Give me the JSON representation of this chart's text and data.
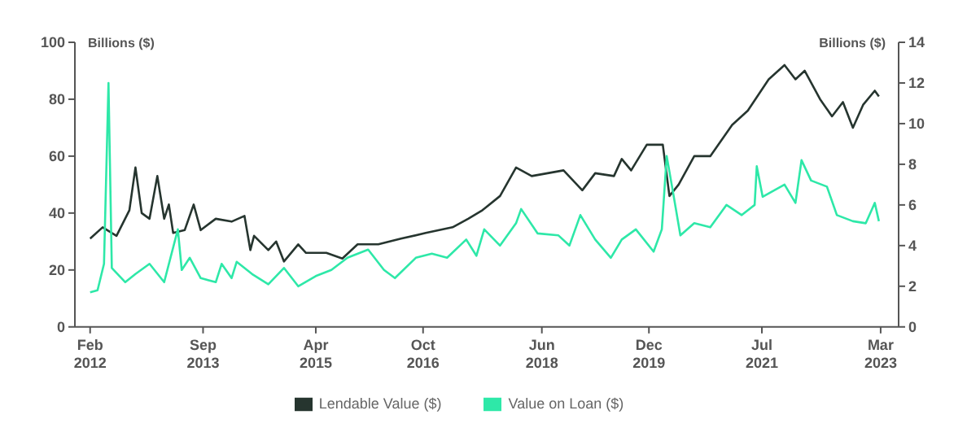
{
  "chart_data": {
    "type": "line",
    "ylabel": "Billions ($)",
    "y2label": "Billions ($)",
    "xlim": [
      "2011-11-15",
      "2023-06-01"
    ],
    "xticks": [
      {
        "value": "2012-02",
        "label": "Feb\n2012"
      },
      {
        "value": "2013-09",
        "label": "Sep\n2013"
      },
      {
        "value": "2015-04",
        "label": "Apr\n2015"
      },
      {
        "value": "2016-10",
        "label": "Oct\n2016"
      },
      {
        "value": "2018-06",
        "label": "Jun\n2018"
      },
      {
        "value": "2019-12",
        "label": "Dec\n2019"
      },
      {
        "value": "2021-07",
        "label": "Jul\n2021"
      },
      {
        "value": "2023-03",
        "label": "Mar\n2023"
      }
    ],
    "ylim": [
      0,
      100
    ],
    "yticks": [
      0,
      20,
      40,
      60,
      80,
      100
    ],
    "y2lim": [
      0,
      14
    ],
    "y2ticks": [
      0,
      2,
      4,
      6,
      8,
      10,
      12,
      14
    ],
    "grid": false,
    "legend": "bottom",
    "marker": "none",
    "line_style": "solid",
    "series": [
      {
        "name": "Lendable Value ($)",
        "color": "#26352f",
        "x": [
          "2012-02-01",
          "2012-04-05",
          "2012-06-15",
          "2012-08-20",
          "2012-09-20",
          "2012-10-22",
          "2012-12-01",
          "2013-01-10",
          "2013-02-14",
          "2013-03-10",
          "2013-04-01",
          "2013-05-30",
          "2013-07-15",
          "2013-08-20",
          "2013-11-05",
          "2014-01-25",
          "2014-04-01",
          "2014-05-01",
          "2014-05-20",
          "2014-08-01",
          "2014-09-10",
          "2014-10-20",
          "2015-01-01",
          "2015-02-10",
          "2015-05-25",
          "2015-08-15",
          "2015-11-01",
          "2016-02-15",
          "2016-06-10",
          "2016-10-15",
          "2017-03-01",
          "2017-05-20",
          "2017-08-01",
          "2017-10-30",
          "2018-01-20",
          "2018-04-10",
          "2018-09-20",
          "2018-12-25",
          "2019-03-01",
          "2019-06-05",
          "2019-07-15",
          "2019-09-01",
          "2019-11-20",
          "2020-02-10",
          "2020-03-15",
          "2020-05-01",
          "2020-07-20",
          "2020-10-10",
          "2021-01-30",
          "2021-04-20",
          "2021-08-05",
          "2021-10-25",
          "2021-12-20",
          "2022-02-05",
          "2022-04-25",
          "2022-06-25",
          "2022-08-20",
          "2022-10-10",
          "2022-12-01",
          "2023-01-30",
          "2023-02-20"
        ],
        "values": [
          31,
          35,
          32,
          41,
          56,
          40,
          38,
          53,
          38,
          43,
          33,
          34,
          43,
          34,
          38,
          37,
          39,
          27,
          32,
          27,
          30,
          23,
          29,
          26,
          26,
          24,
          29,
          29,
          31,
          33,
          35,
          38,
          41,
          46,
          56,
          53,
          55,
          48,
          54,
          53,
          59,
          55,
          64,
          64,
          46,
          50,
          60,
          60,
          71,
          76,
          87,
          92,
          87,
          90,
          80,
          74,
          79,
          70,
          78,
          83,
          81
        ]
      },
      {
        "name": "Value on Loan ($)",
        "color": "#2ee8a8",
        "axis": "y2",
        "x": [
          "2012-02-01",
          "2012-03-10",
          "2012-04-12",
          "2012-05-05",
          "2012-05-22",
          "2012-07-30",
          "2012-09-20",
          "2012-12-01",
          "2013-02-14",
          "2013-04-25",
          "2013-05-15",
          "2013-06-25",
          "2013-08-20",
          "2013-11-05",
          "2013-12-05",
          "2014-01-25",
          "2014-02-20",
          "2014-05-10",
          "2014-08-01",
          "2014-10-20",
          "2015-01-01",
          "2015-04-01",
          "2015-06-20",
          "2015-09-10",
          "2015-12-25",
          "2016-03-15",
          "2016-05-10",
          "2016-08-25",
          "2016-11-15",
          "2017-02-01",
          "2017-05-10",
          "2017-07-01",
          "2017-08-10",
          "2017-10-30",
          "2018-01-20",
          "2018-02-15",
          "2018-05-10",
          "2018-08-25",
          "2018-10-20",
          "2018-12-15",
          "2019-03-01",
          "2019-05-20",
          "2019-07-15",
          "2019-09-25",
          "2019-12-25",
          "2020-02-05",
          "2020-03-01",
          "2020-04-01",
          "2020-05-10",
          "2020-07-20",
          "2020-10-10",
          "2021-01-01",
          "2021-03-20",
          "2021-05-25",
          "2021-06-05",
          "2021-07-05",
          "2021-10-25",
          "2021-12-20",
          "2022-01-20",
          "2022-03-10",
          "2022-05-30",
          "2022-07-20",
          "2022-10-10",
          "2022-12-15",
          "2023-01-30",
          "2023-02-20"
        ],
        "values": [
          1.7,
          1.8,
          3.1,
          12,
          2.9,
          2.2,
          2.6,
          3.1,
          2.2,
          4.8,
          2.8,
          3.4,
          2.4,
          2.2,
          3.1,
          2.4,
          3.2,
          2.6,
          2.1,
          2.9,
          2.0,
          2.5,
          2.8,
          3.4,
          3.8,
          2.8,
          2.4,
          3.4,
          3.6,
          3.4,
          4.3,
          3.5,
          4.8,
          4.0,
          5.1,
          5.8,
          4.6,
          4.5,
          4.0,
          5.5,
          4.3,
          3.4,
          4.3,
          4.8,
          3.7,
          4.8,
          8.4,
          6.7,
          4.5,
          5.1,
          4.9,
          6.0,
          5.5,
          6.0,
          7.9,
          6.4,
          7.0,
          6.1,
          8.2,
          7.2,
          6.9,
          5.5,
          5.2,
          5.1,
          6.1,
          5.2
        ]
      }
    ]
  }
}
